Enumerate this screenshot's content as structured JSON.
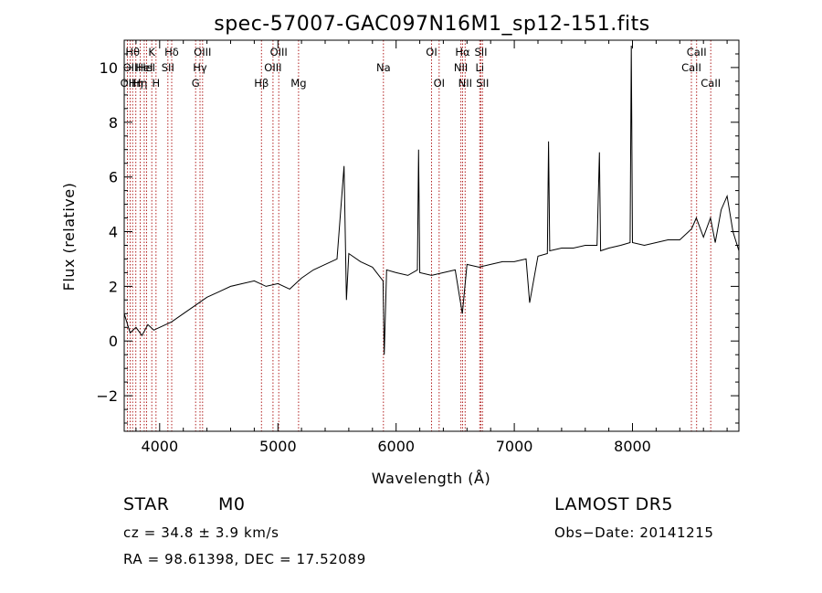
{
  "chart_data": {
    "type": "line",
    "title": "spec-57007-GAC097N16M1_sp12-151.fits",
    "xlabel": "Wavelength (Å)",
    "ylabel": "Flux (relative)",
    "xlim": [
      3700,
      8900
    ],
    "ylim": [
      -3.3,
      11
    ],
    "xticks": [
      4000,
      5000,
      6000,
      7000,
      8000
    ],
    "xtick_labels": [
      "4000",
      "5000",
      "6000",
      "7000",
      "8000"
    ],
    "yticks": [
      -2,
      0,
      2,
      4,
      6,
      8,
      10
    ],
    "ytick_labels": [
      "−2",
      "0",
      "2",
      "4",
      "6",
      "8",
      "10"
    ],
    "grid": false,
    "line_color": "#000000",
    "marker_color": "#b22222",
    "series": [
      {
        "x": [
          3700,
          3750,
          3800,
          3850,
          3900,
          3950,
          4000,
          4100,
          4200,
          4300,
          4400,
          4500,
          4600,
          4700,
          4800,
          4900,
          5000,
          5100,
          5200,
          5300,
          5400,
          5500,
          5560,
          5580,
          5600,
          5700,
          5800,
          5890,
          5900,
          5920,
          6000,
          6100,
          6180,
          6190,
          6200,
          6300,
          6400,
          6500,
          6560,
          6600,
          6700,
          6800,
          6900,
          7000,
          7100,
          7130,
          7200,
          7280,
          7290,
          7300,
          7400,
          7500,
          7600,
          7700,
          7720,
          7730,
          7800,
          7900,
          7980,
          7990,
          8000,
          8100,
          8200,
          8300,
          8400,
          8500,
          8540,
          8600,
          8660,
          8700,
          8750,
          8800,
          8850,
          8900
        ],
        "y": [
          1.0,
          0.3,
          0.5,
          0.2,
          0.6,
          0.4,
          0.5,
          0.7,
          1.0,
          1.3,
          1.6,
          1.8,
          2.0,
          2.1,
          2.2,
          2.0,
          2.1,
          1.9,
          2.3,
          2.6,
          2.8,
          3.0,
          6.4,
          1.5,
          3.2,
          2.9,
          2.7,
          2.2,
          -0.5,
          2.6,
          2.5,
          2.4,
          2.6,
          7.0,
          2.5,
          2.4,
          2.5,
          2.6,
          1.0,
          2.8,
          2.7,
          2.8,
          2.9,
          2.9,
          3.0,
          1.4,
          3.1,
          3.2,
          7.3,
          3.3,
          3.4,
          3.4,
          3.5,
          3.5,
          6.9,
          3.3,
          3.4,
          3.5,
          3.6,
          10.8,
          3.6,
          3.5,
          3.6,
          3.7,
          3.7,
          4.1,
          4.5,
          3.8,
          4.5,
          3.6,
          4.8,
          5.3,
          4.0,
          3.3
        ]
      }
    ],
    "line_markers": [
      {
        "wave": 3727,
        "label": "OII",
        "row": 3
      },
      {
        "wave": 3750,
        "label": "OII",
        "row": 2
      },
      {
        "wave": 3771,
        "label": "Hθ",
        "row": 1
      },
      {
        "wave": 3798,
        "label": "Hη",
        "row": 3
      },
      {
        "wave": 3835,
        "label": "Hη",
        "row": 3
      },
      {
        "wave": 3869,
        "label": "HeI",
        "row": 2
      },
      {
        "wave": 3889,
        "label": "HeI",
        "row": 2
      },
      {
        "wave": 3933,
        "label": "K",
        "row": 1
      },
      {
        "wave": 3969,
        "label": "H",
        "row": 3
      },
      {
        "wave": 4069,
        "label": "SII",
        "row": 2
      },
      {
        "wave": 4102,
        "label": "Hδ",
        "row": 1
      },
      {
        "wave": 4304,
        "label": "G",
        "row": 3
      },
      {
        "wave": 4341,
        "label": "Hγ",
        "row": 2
      },
      {
        "wave": 4363,
        "label": "OIII",
        "row": 1
      },
      {
        "wave": 4861,
        "label": "Hβ",
        "row": 3
      },
      {
        "wave": 4959,
        "label": "OIII",
        "row": 2
      },
      {
        "wave": 5007,
        "label": "OIII",
        "row": 1
      },
      {
        "wave": 5175,
        "label": "Mg",
        "row": 3
      },
      {
        "wave": 5893,
        "label": "Na",
        "row": 2
      },
      {
        "wave": 6300,
        "label": "OI",
        "row": 1
      },
      {
        "wave": 6364,
        "label": "OI",
        "row": 3
      },
      {
        "wave": 6548,
        "label": "NII",
        "row": 2
      },
      {
        "wave": 6563,
        "label": "Hα",
        "row": 1
      },
      {
        "wave": 6584,
        "label": "NII",
        "row": 3
      },
      {
        "wave": 6708,
        "label": "Li",
        "row": 2
      },
      {
        "wave": 6717,
        "label": "SII",
        "row": 1
      },
      {
        "wave": 6731,
        "label": "SII",
        "row": 3
      },
      {
        "wave": 8498,
        "label": "CaII",
        "row": 2
      },
      {
        "wave": 8542,
        "label": "CaII",
        "row": 1
      },
      {
        "wave": 8662,
        "label": "CaII",
        "row": 3
      }
    ]
  },
  "info": {
    "object_class": "STAR",
    "subclass": "M0",
    "survey": "LAMOST DR5",
    "redshift_line": "cz = 34.8 ± 3.9 km/s",
    "obs_date_line": "Obs−Date: 20141215",
    "coords_line": "RA =  98.61398, DEC =  17.52089"
  }
}
